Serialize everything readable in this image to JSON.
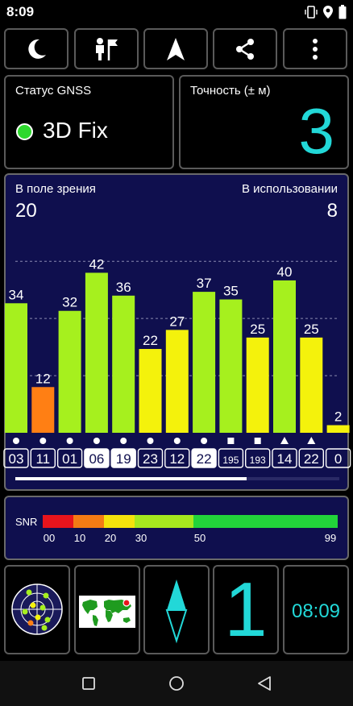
{
  "status_bar": {
    "time": "8:09"
  },
  "toolbar": {
    "icons": [
      "moon-icon",
      "man-flag-icon",
      "navigation-arrow-icon",
      "share-icon",
      "more-vert-icon"
    ]
  },
  "gnss_status": {
    "label": "Статус GNSS",
    "value": "3D Fix",
    "indicator_color": "#2ed82e"
  },
  "accuracy": {
    "label": "Точность (± м)",
    "value": "3",
    "value_color": "#22d8d8"
  },
  "satellites": {
    "in_view_label": "В поле зрения",
    "in_view_count": "20",
    "in_use_label": "В использовании",
    "in_use_count": "8"
  },
  "chart_data": {
    "type": "bar",
    "categories": [
      "03",
      "11",
      "01",
      "06",
      "19",
      "23",
      "12",
      "22",
      "195",
      "193",
      "14",
      "22",
      "0"
    ],
    "values": [
      34,
      12,
      32,
      42,
      36,
      22,
      27,
      37,
      35,
      25,
      40,
      25,
      2
    ],
    "value_labels": [
      "34",
      "12",
      "32",
      "42",
      "36",
      "22",
      "27",
      "37",
      "35",
      "25",
      "40",
      "25",
      "2"
    ],
    "markers": [
      "circle",
      "circle",
      "circle",
      "circle",
      "circle",
      "circle",
      "circle",
      "circle",
      "square",
      "square",
      "triangle",
      "triangle",
      ""
    ],
    "highlighted": [
      false,
      false,
      false,
      true,
      true,
      false,
      false,
      true,
      false,
      false,
      false,
      false,
      false
    ],
    "colors": [
      "#a6f01e",
      "#ff7f14",
      "#a6f01e",
      "#a6f01e",
      "#a6f01e",
      "#f4f20c",
      "#f4f20c",
      "#a6f01e",
      "#a6f01e",
      "#f4f20c",
      "#a6f01e",
      "#f4f20c",
      "#f4f20c"
    ],
    "ylim": [
      0,
      55
    ],
    "grid": true
  },
  "snr_legend": {
    "label": "SNR",
    "ticks": [
      "00",
      "10",
      "20",
      "30",
      "50",
      "99"
    ],
    "colors": [
      "#e8141c",
      "#f47b14",
      "#f4e20c",
      "#a6e81e",
      "#22d43a"
    ]
  },
  "bottom": {
    "accuracy_display": "1",
    "clock": "08:09",
    "icons": [
      "radar-sky-icon",
      "world-map-icon",
      "compass-icon"
    ]
  },
  "nav_bar": {
    "icons": [
      "recents-square-icon",
      "home-circle-icon",
      "back-triangle-icon"
    ]
  }
}
